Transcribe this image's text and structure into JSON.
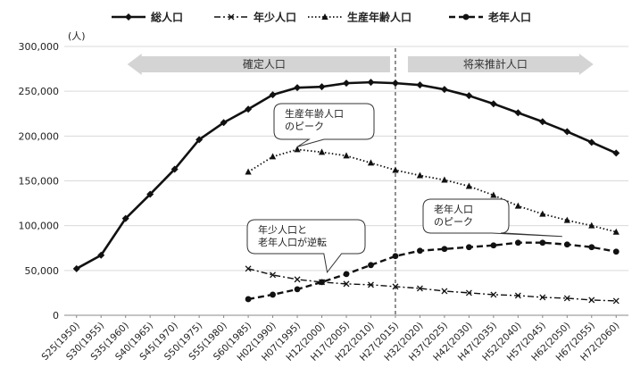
{
  "chart_data": {
    "type": "line",
    "y_unit": "(人)",
    "ylim": [
      0,
      300000
    ],
    "yticks": [
      "0",
      "50,000",
      "100,000",
      "150,000",
      "200,000",
      "250,000",
      "300,000"
    ],
    "grid": true,
    "legend_position": "top",
    "categories": [
      "S25(1950)",
      "S30(1955)",
      "S35(1960)",
      "S40(1965)",
      "S45(1970)",
      "S50(1975)",
      "S55(1980)",
      "S60(1985)",
      "H02(1990)",
      "H07(1995)",
      "H12(2000)",
      "H17(2005)",
      "H22(2010)",
      "H27(2015)",
      "H32(2020)",
      "H37(2025)",
      "H42(2030)",
      "H47(2035)",
      "H52(2040)",
      "H57(2045)",
      "H62(2050)",
      "H67(2055)",
      "H72(2060)"
    ],
    "series": [
      {
        "name": "総人口",
        "style": "solid-diamond",
        "values": [
          52000,
          67000,
          108000,
          135000,
          163000,
          196000,
          215000,
          230000,
          246000,
          254000,
          255000,
          259000,
          260000,
          259000,
          257000,
          252000,
          245000,
          236000,
          226000,
          216000,
          205000,
          193000,
          181000
        ]
      },
      {
        "name": "年少人口",
        "style": "dashdot-x",
        "values": [
          null,
          null,
          null,
          null,
          null,
          null,
          null,
          52000,
          45000,
          40000,
          37000,
          35000,
          34000,
          32000,
          30000,
          27000,
          25000,
          23000,
          22000,
          20000,
          19000,
          17000,
          16000
        ]
      },
      {
        "name": "生産年齢人口",
        "style": "dotted-triangle",
        "values": [
          null,
          null,
          null,
          null,
          null,
          null,
          null,
          160000,
          177000,
          185000,
          182000,
          178000,
          170000,
          162000,
          156000,
          151000,
          144000,
          134000,
          122000,
          113000,
          106000,
          100000,
          93000
        ]
      },
      {
        "name": "老年人口",
        "style": "dashed-circle",
        "values": [
          null,
          null,
          null,
          null,
          null,
          null,
          null,
          18000,
          23000,
          29000,
          37000,
          46000,
          56000,
          66000,
          72000,
          74000,
          76000,
          78000,
          81000,
          81000,
          79000,
          76000,
          71000
        ]
      }
    ],
    "divider_after_category": "H27(2015)",
    "arrows": [
      {
        "label": "確定人口",
        "direction": "left"
      },
      {
        "label": "将来推計人口",
        "direction": "right"
      }
    ],
    "annotations": [
      {
        "text_lines": [
          "生産年齢人口",
          "のピーク"
        ],
        "target_series": "生産年齢人口",
        "target_category": "H07(1995)"
      },
      {
        "text_lines": [
          "年少人口と",
          "老年人口が逆転"
        ],
        "target_series": "年少人口",
        "target_category": "H12(2000)"
      },
      {
        "text_lines": [
          "老年人口",
          "のピーク"
        ],
        "target_series": "老年人口",
        "target_category": "H57(2045)"
      }
    ]
  }
}
